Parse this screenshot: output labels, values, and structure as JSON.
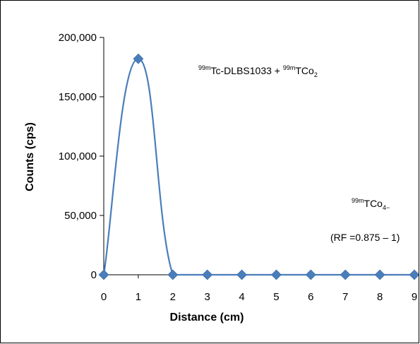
{
  "chart_data": {
    "type": "scatter",
    "xlabel": "Distance (cm)",
    "ylabel": "Counts (cps)",
    "x_ticks": [
      "0",
      "1",
      "2",
      "3",
      "4",
      "5",
      "6",
      "7",
      "8",
      "9"
    ],
    "y_ticks": [
      "0",
      "50,000",
      "100,000",
      "150,000",
      "200,000"
    ],
    "xlim": [
      0,
      9
    ],
    "ylim": [
      0,
      200000
    ],
    "grid": false,
    "legend": "none",
    "series": [
      {
        "x": [
          0,
          1,
          2,
          3,
          4,
          5,
          6,
          7,
          8,
          9
        ],
        "y": [
          0,
          182000,
          0,
          0,
          0,
          0,
          0,
          0,
          0,
          0
        ],
        "color": "#4a7ebb",
        "marker": "diamond",
        "line": "smooth"
      }
    ],
    "annotations": [
      {
        "id": "peak",
        "parts": [
          {
            "text": "99m",
            "sup": true
          },
          {
            "text": "Tc-DLBS1033 + "
          },
          {
            "text": "99m",
            "sup": true
          },
          {
            "text": "TCo"
          },
          {
            "text": "2",
            "sub": true
          }
        ]
      },
      {
        "id": "free",
        "parts": [
          {
            "text": "99m",
            "sup": true
          },
          {
            "text": "TCo"
          },
          {
            "text": "4−",
            "sub": true
          }
        ]
      },
      {
        "id": "rf",
        "parts": [
          {
            "text": "(RF =0.875 – 1)"
          }
        ]
      }
    ]
  }
}
